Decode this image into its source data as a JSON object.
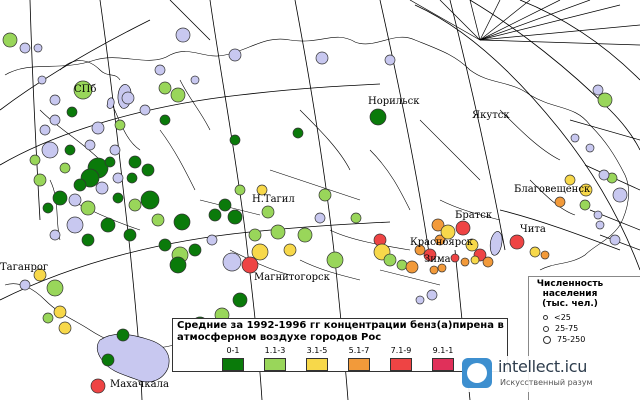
{
  "map": {
    "legend": {
      "title_line1": "Средние за 1992-1996 гг концентрации бенз(а)пирена в",
      "title_line2": "атмосферном воздухе городов Рос",
      "classes": [
        {
          "label": "0-1",
          "color": "#0a7a0a"
        },
        {
          "label": "1.1-3",
          "color": "#99d65a"
        },
        {
          "label": "3.1-5",
          "color": "#f7d84a"
        },
        {
          "label": "5.1-7",
          "color": "#f29a3a"
        },
        {
          "label": "7.1-9",
          "color": "#ee4444"
        },
        {
          "label": "9.1-1",
          "color": "#e0305a"
        }
      ]
    },
    "population_legend": {
      "title_line1": "Численность",
      "title_line2": "населения",
      "title_line3": "(тыс. чел.)",
      "items": [
        "<25",
        "25-75",
        "75-250"
      ]
    },
    "city_labels": {
      "spb": "СПб",
      "norilsk": "Норильск",
      "yakutsk": "Якутск",
      "ntagil": "Н.Тагил",
      "magnitogorsk": "Магнитогорск",
      "taganrog": "Таганрог",
      "makhachkala": "Махачкала",
      "blagoveshchensk": "Благовещенск",
      "bratsk": "Братск",
      "krasnoyarsk": "Красноярск",
      "zima": "Зима",
      "chita": "Чита"
    },
    "other_colors": {
      "no_data": "#c8c8f0",
      "water": "#c8c8f0"
    },
    "watermark": {
      "name": "intellect.icu",
      "sub": "Искусственный разум"
    }
  }
}
